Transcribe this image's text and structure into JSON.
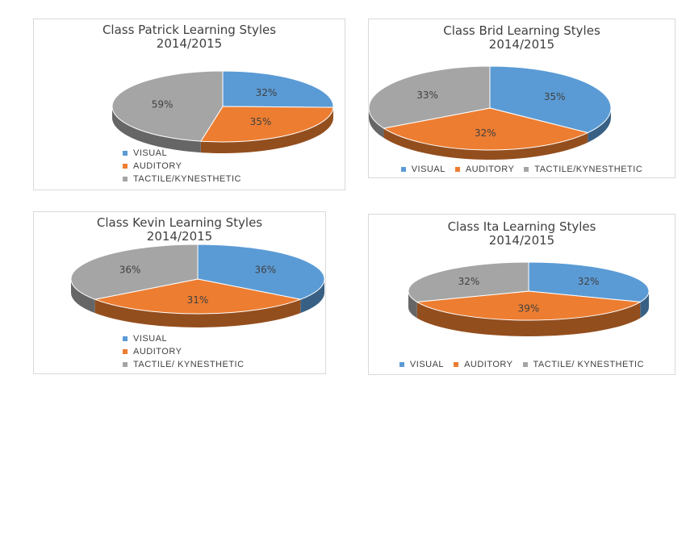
{
  "colors": {
    "visual": "#5b9bd5",
    "auditory": "#ed7d31",
    "tactile": "#a5a5a5"
  },
  "chart_data": [
    {
      "type": "pie",
      "title": "Class Patrick Learning Styles\n2014/2015",
      "categories": [
        "VISUAL",
        "AUDITORY",
        "TACTILE/KYNESTHETIC"
      ],
      "values": [
        32,
        35,
        59
      ],
      "labels": [
        "32%",
        "35%",
        "59%"
      ],
      "legend": "bottom-left"
    },
    {
      "type": "pie",
      "title": "Class Brid Learning Styles\n2014/2015",
      "categories": [
        "VISUAL",
        "AUDITORY",
        "TACTILE/KYNESTHETIC"
      ],
      "values": [
        35,
        32,
        33
      ],
      "labels": [
        "35%",
        "32%",
        "33%"
      ],
      "legend": "bottom"
    },
    {
      "type": "pie",
      "title": "Class Kevin Learning Styles\n2014/2015",
      "categories": [
        "VISUAL",
        "AUDITORY",
        "TACTILE/ KYNESTHETIC"
      ],
      "values": [
        36,
        31,
        36
      ],
      "labels": [
        "36%",
        "31%",
        "36%"
      ],
      "legend": "bottom-left"
    },
    {
      "type": "pie",
      "title": "Class Ita Learning Styles\n2014/2015",
      "categories": [
        "VISUAL",
        "AUDITORY",
        "TACTILE/ KYNESTHETIC"
      ],
      "values": [
        32,
        39,
        32
      ],
      "labels": [
        "32%",
        "39%",
        "32%"
      ],
      "legend": "bottom"
    }
  ]
}
